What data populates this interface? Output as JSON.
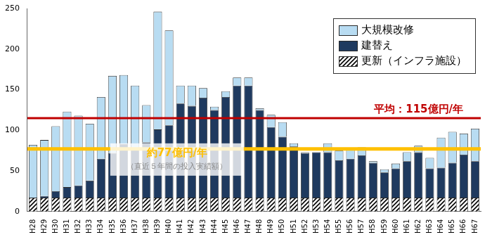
{
  "chart_data": {
    "type": "bar",
    "stacked": true,
    "grid": false,
    "legend": "upper right",
    "categories": [
      "H28",
      "H29",
      "H30",
      "H31",
      "H32",
      "H33",
      "H34",
      "H35",
      "H36",
      "H37",
      "H38",
      "H39",
      "H40",
      "H41",
      "H42",
      "H43",
      "H44",
      "H45",
      "H46",
      "H47",
      "H48",
      "H49",
      "H50",
      "H51",
      "H52",
      "H53",
      "H54",
      "H55",
      "H56",
      "H57",
      "H58",
      "H59",
      "H60",
      "H61",
      "H62",
      "H63",
      "H64",
      "H65",
      "H66",
      "H67"
    ],
    "series": [
      {
        "name": "更新（インフラ施設）",
        "color": "#000000",
        "line_style": "hatched",
        "values": [
          17,
          17,
          17,
          17,
          17,
          17,
          17,
          17,
          17,
          17,
          17,
          17,
          17,
          17,
          17,
          17,
          17,
          17,
          17,
          17,
          17,
          17,
          17,
          17,
          17,
          17,
          17,
          17,
          17,
          17,
          17,
          17,
          17,
          17,
          17,
          17,
          17,
          17,
          17,
          17
        ]
      },
      {
        "name": "建替え",
        "color": "#1f3a5f",
        "values": [
          0,
          2,
          8,
          13,
          15,
          21,
          48,
          55,
          66,
          61,
          68,
          84,
          89,
          116,
          113,
          123,
          108,
          124,
          138,
          138,
          108,
          87,
          75,
          63,
          55,
          56,
          56,
          46,
          48,
          52,
          43,
          31,
          36,
          45,
          56,
          36,
          37,
          43,
          53,
          45
        ]
      },
      {
        "name": "大規模改修",
        "color": "#b8dcf2",
        "values": [
          65,
          69,
          80,
          93,
          86,
          70,
          76,
          95,
          85,
          77,
          46,
          145,
          117,
          22,
          25,
          12,
          4,
          7,
          10,
          10,
          2,
          15,
          18,
          4,
          1,
          0,
          11,
          12,
          13,
          10,
          2,
          4,
          6,
          11,
          8,
          13,
          37,
          38,
          26,
          40
        ]
      }
    ],
    "ylim": [
      0,
      250
    ],
    "yticks": [
      0,
      50,
      100,
      150,
      200,
      250
    ],
    "reference_lines": [
      {
        "value": 115,
        "label": "平均：115億円/年",
        "color": "#c00000"
      },
      {
        "value": 77,
        "label": "約77億円/年",
        "sublabel": "（直近５年間の投入実績額）",
        "color": "#ffc000"
      }
    ]
  }
}
